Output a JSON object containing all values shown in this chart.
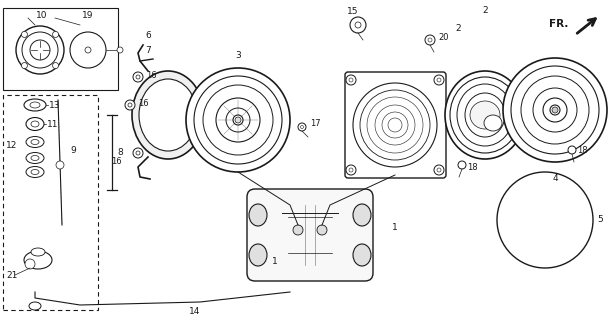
{
  "bg_color": "#ffffff",
  "line_color": "#1a1a1a",
  "label_color": "#1a1a1a",
  "fig_width": 6.08,
  "fig_height": 3.2,
  "dpi": 100
}
